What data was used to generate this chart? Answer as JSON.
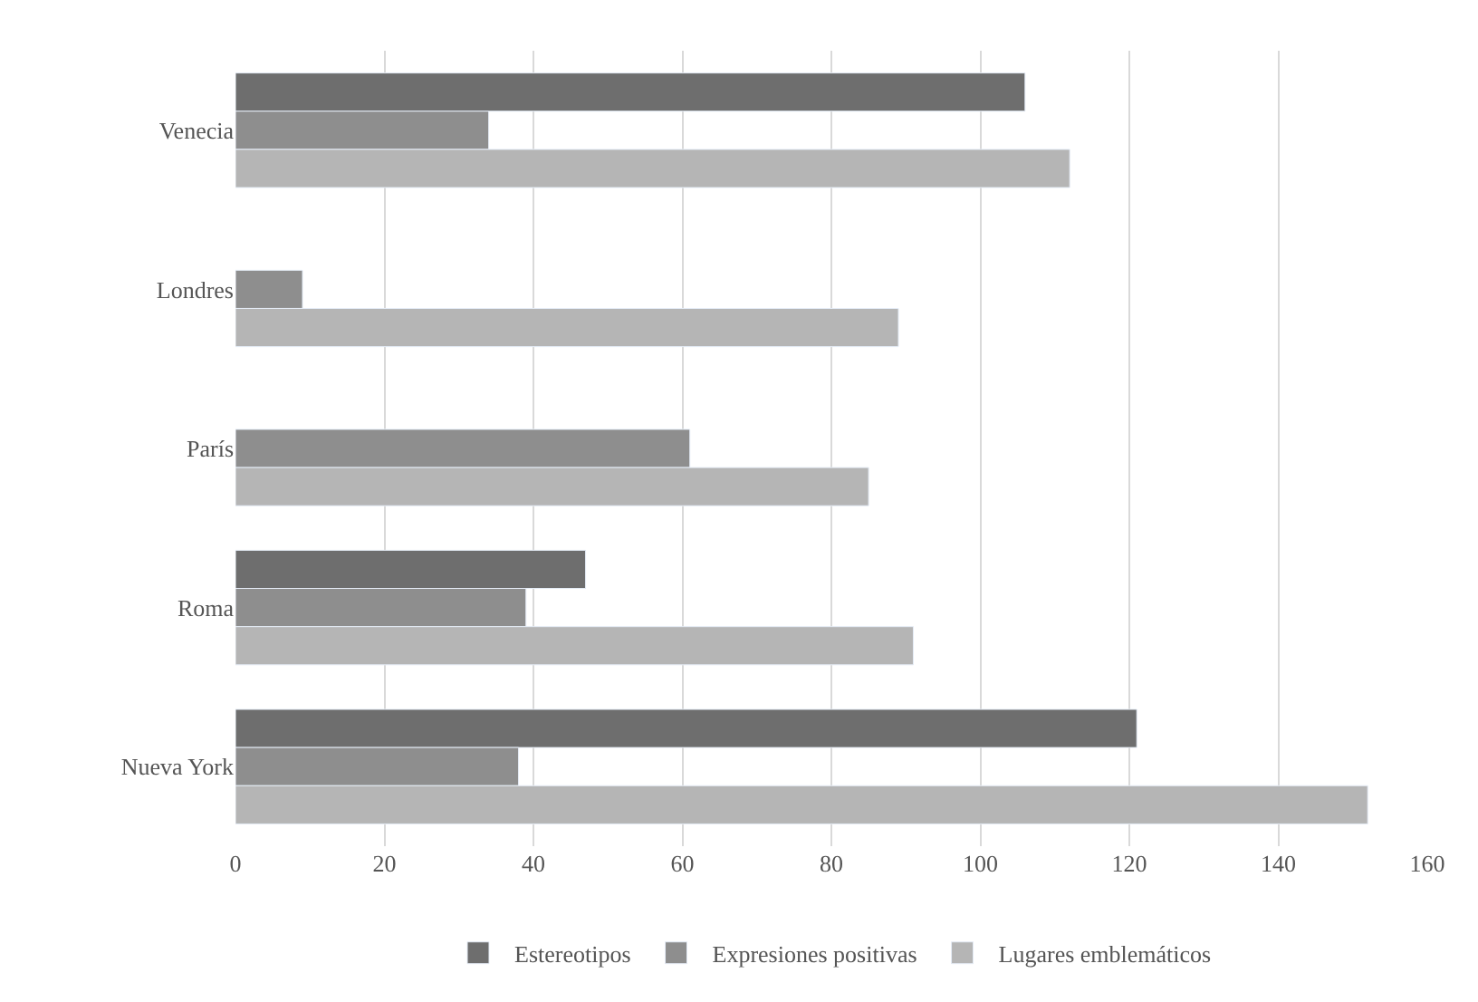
{
  "chart_data": {
    "type": "bar",
    "orientation": "horizontal",
    "categories": [
      "Venecia",
      "Londres",
      "París",
      "Roma",
      "Nueva York"
    ],
    "series": [
      {
        "name": "Estereotipos",
        "color": "#6e6e6e",
        "values": [
          106,
          null,
          null,
          47,
          121
        ]
      },
      {
        "name": "Expresiones positivas",
        "color": "#8e8e8e",
        "values": [
          34,
          9,
          61,
          39,
          38
        ]
      },
      {
        "name": "Lugares emblemáticos",
        "color": "#b5b5b5",
        "values": [
          112,
          89,
          85,
          91,
          152
        ]
      }
    ],
    "xlim": [
      0,
      160
    ],
    "xticks": [
      0,
      20,
      40,
      60,
      80,
      100,
      120,
      140,
      160
    ],
    "grid": "x",
    "legend": "bottom"
  }
}
